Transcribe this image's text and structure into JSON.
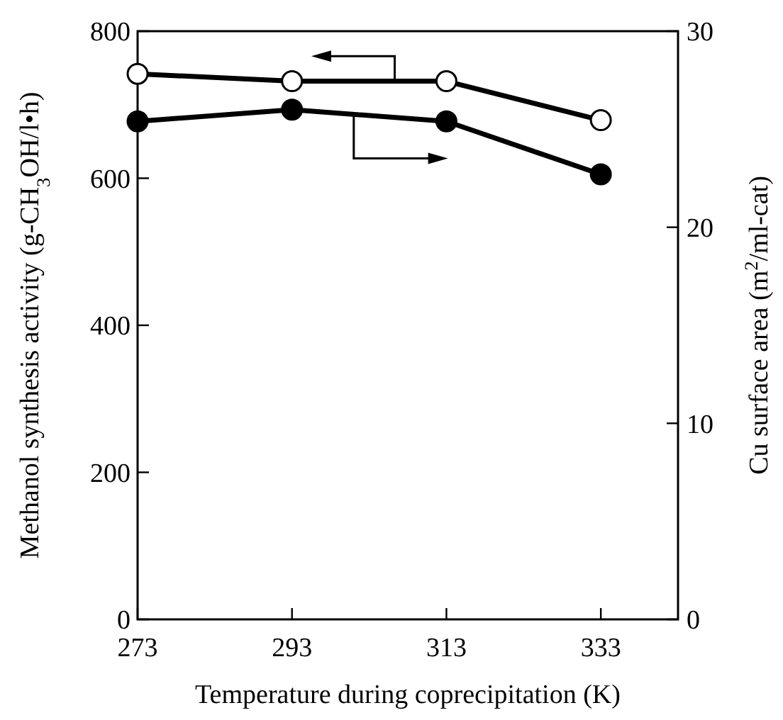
{
  "chart_data": {
    "type": "line",
    "xlabel": "Temperature during coprecipitation (K)",
    "ylabel": "Methanol synthesis activity (g-CH$_{3}$OH/l•h)",
    "y2label": "Cu surface area (m$^{2}$/ml-cat)",
    "x": [
      273,
      293,
      313,
      333
    ],
    "xlim": [
      273,
      343
    ],
    "xticks": [
      273,
      293,
      313,
      333
    ],
    "ylim": [
      0,
      800
    ],
    "yticks": [
      0,
      200,
      400,
      600,
      800
    ],
    "y2lim": [
      0,
      30
    ],
    "y2ticks": [
      0,
      10,
      20,
      30
    ],
    "marker": "circle",
    "line_style": "solid",
    "grid": false,
    "series": [
      {
        "color": "#000000",
        "values": [
          742,
          732,
          732,
          679
        ]
      },
      {
        "color": "#000000",
        "axis": "y2",
        "values": [
          25.4,
          26.0,
          25.4,
          22.7
        ]
      }
    ]
  }
}
